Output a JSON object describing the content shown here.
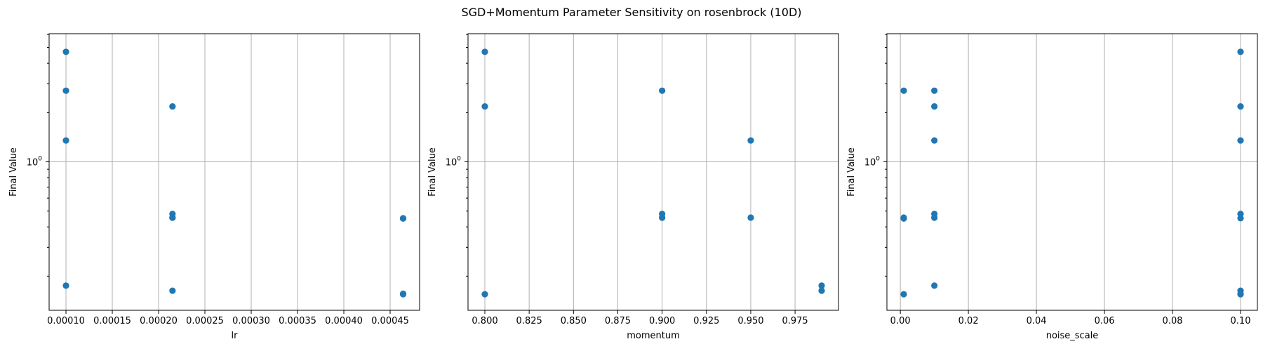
{
  "chart_data": {
    "title": "SGD+Momentum Parameter Sensitivity on rosenbrock (10D)",
    "subplots": [
      {
        "type": "scatter",
        "xlabel": "lr",
        "ylabel": "Final Value",
        "xscale": "linear",
        "yscale": "log",
        "xlim": [
          8.18e-05,
          0.0004818
        ],
        "ylim": [
          0.1237,
          6.065
        ],
        "grid": true,
        "xticks": [
          0.0001,
          0.00015,
          0.0002,
          0.00025,
          0.0003,
          0.00035,
          0.0004,
          0.00045
        ],
        "xtick_labels": [
          "0.00010",
          "0.00015",
          "0.00020",
          "0.00025",
          "0.00030",
          "0.00035",
          "0.00040",
          "0.00045"
        ],
        "ytick_label": "10^0",
        "x": [
          0.0001,
          0.0001,
          0.0001,
          0.0001,
          0.000215,
          0.000215,
          0.000215,
          0.000215,
          0.000215,
          0.000464,
          0.000464,
          0.000464,
          0.000464
        ],
        "y": [
          4.7,
          2.72,
          1.35,
          0.175,
          2.18,
          0.48,
          0.455,
          0.163,
          0.456,
          0.45,
          0.156,
          0.155,
          0.452
        ]
      },
      {
        "type": "scatter",
        "xlabel": "momentum",
        "ylabel": "Final Value",
        "xscale": "linear",
        "yscale": "log",
        "xlim": [
          0.7905,
          0.9995
        ],
        "ylim": [
          0.1237,
          6.065
        ],
        "grid": true,
        "xticks": [
          0.8,
          0.825,
          0.85,
          0.875,
          0.9,
          0.925,
          0.95,
          0.975
        ],
        "xtick_labels": [
          "0.800",
          "0.825",
          "0.850",
          "0.875",
          "0.900",
          "0.925",
          "0.950",
          "0.975"
        ],
        "ytick_label": "10^0",
        "x": [
          0.8,
          0.8,
          0.8,
          0.9,
          0.9,
          0.9,
          0.95,
          0.95,
          0.99,
          0.99
        ],
        "y": [
          4.7,
          2.18,
          0.155,
          2.72,
          0.48,
          0.455,
          1.35,
          0.456,
          0.175,
          0.163
        ],
        "note": "many points overlap at the same coordinates"
      },
      {
        "type": "scatter",
        "xlabel": "noise_scale",
        "ylabel": "Final Value",
        "xscale": "linear",
        "yscale": "log",
        "xlim": [
          -0.00395,
          0.10495
        ],
        "ylim": [
          0.1237,
          6.065
        ],
        "grid": true,
        "xticks": [
          0.0,
          0.02,
          0.04,
          0.06,
          0.08,
          0.1
        ],
        "xtick_labels": [
          "0.00",
          "0.02",
          "0.04",
          "0.06",
          "0.08",
          "0.10"
        ],
        "ytick_label": "10^0",
        "x": [
          0.001,
          0.001,
          0.001,
          0.001,
          0.01,
          0.01,
          0.01,
          0.01,
          0.01,
          0.01,
          0.1,
          0.1,
          0.1,
          0.1,
          0.1,
          0.1,
          0.1,
          0.1
        ],
        "y": [
          2.72,
          0.456,
          0.45,
          0.155,
          2.72,
          2.18,
          1.35,
          0.48,
          0.455,
          0.175,
          4.7,
          2.18,
          1.35,
          0.48,
          0.452,
          0.163,
          0.156,
          0.155
        ]
      }
    ]
  }
}
